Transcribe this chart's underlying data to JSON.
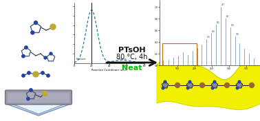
{
  "background_color": "#ffffff",
  "arrow_text_line1": "PTsOH",
  "arrow_text_line2": "80 °C, 4h",
  "arrow_text_line3": "Neat",
  "arrow_text_line3_color": "#00bb00",
  "tube_body_color": "#e8f4ff",
  "tube_cap_color": "#9999aa",
  "tube_cap_light": "#bbbbcc",
  "inset_bg": "#ffffff",
  "inset_curve_color": "#1a7aaa",
  "yellow_substrate": "#f0f000",
  "yellow_substrate_edge": "#c8c800",
  "ms_bar_color": "#7799bb",
  "ms_bar_color2": "#aabbcc",
  "ms_highlight_color": "#cc6600",
  "fig_width": 3.78,
  "fig_height": 1.76,
  "atom_dark": "#222233",
  "atom_blue": "#2244aa",
  "atom_sulfur": "#bbaa33",
  "atom_brown": "#996633",
  "bond_color": "#333344"
}
